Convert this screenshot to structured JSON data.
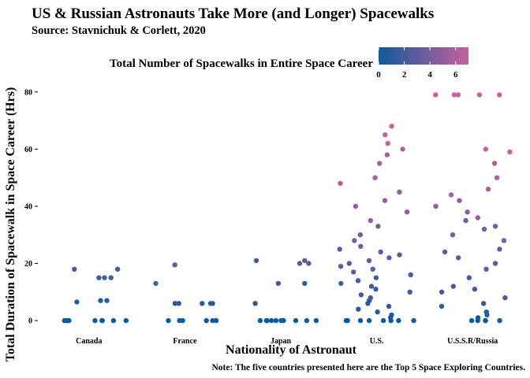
{
  "chart_data": {
    "type": "scatter",
    "title": "US & Russian Astronauts Take More (and Longer) Spacewalks",
    "subtitle": "Source: Stavnichuk & Corlett, 2020",
    "caption": "Note: The five countries presented here are the Top 5 Space Exploring Countries.",
    "xlabel": "Nationality of Astronaut",
    "ylabel": "Total Duration of Spacewalk in Space Career (Hrs)",
    "categories": [
      "Canada",
      "France",
      "Japan",
      "U.S.",
      "U.S.S.R/Russia"
    ],
    "ylim": [
      -3,
      86
    ],
    "y_ticks": [
      0,
      20,
      40,
      60,
      80
    ],
    "grid": false,
    "color_legend": {
      "title": "Total Number of Spacewalks in Entire Space Career",
      "placement": "top",
      "range": [
        0,
        7
      ],
      "ticks": [
        0,
        2,
        4,
        6
      ],
      "low_color": "#0e5a9c",
      "high_color": "#c7609e"
    },
    "points": {
      "Canada": [
        [
          7,
          1
        ],
        [
          18,
          2
        ],
        [
          15,
          2
        ],
        [
          0,
          0
        ],
        [
          0,
          0
        ],
        [
          0,
          0
        ],
        [
          0,
          0
        ],
        [
          18,
          2
        ],
        [
          15,
          2
        ],
        [
          0,
          0
        ],
        [
          7,
          1
        ],
        [
          6.5,
          1
        ],
        [
          15,
          2
        ],
        [
          0,
          0
        ],
        [
          0,
          0
        ],
        [
          0,
          0
        ],
        [
          0,
          0
        ]
      ],
      "France": [
        [
          0,
          0
        ],
        [
          0,
          0
        ],
        [
          6,
          1
        ],
        [
          13,
          2
        ],
        [
          0,
          0
        ],
        [
          6,
          1
        ],
        [
          19.5,
          3
        ],
        [
          0,
          0
        ],
        [
          6,
          1
        ],
        [
          0,
          0
        ],
        [
          6,
          1
        ],
        [
          6,
          1
        ],
        [
          0,
          0
        ]
      ],
      "Japan": [
        [
          13,
          1
        ],
        [
          21,
          2
        ],
        [
          6,
          1
        ],
        [
          0,
          0
        ],
        [
          0,
          0
        ],
        [
          0,
          0
        ],
        [
          0,
          0
        ],
        [
          13,
          2
        ],
        [
          20,
          3
        ],
        [
          0,
          0
        ],
        [
          0,
          0
        ],
        [
          20,
          3
        ],
        [
          21,
          3
        ],
        [
          0,
          0
        ],
        [
          0,
          0
        ],
        [
          0,
          0
        ],
        [
          0,
          0
        ]
      ],
      "U.S.": [
        [
          0,
          0
        ],
        [
          0,
          0
        ],
        [
          0,
          0
        ],
        [
          0,
          0
        ],
        [
          0,
          0
        ],
        [
          2,
          1
        ],
        [
          4,
          1
        ],
        [
          6,
          1
        ],
        [
          7,
          1
        ],
        [
          8,
          2
        ],
        [
          10,
          2
        ],
        [
          12,
          2
        ],
        [
          13,
          2
        ],
        [
          14,
          2
        ],
        [
          20,
          3
        ],
        [
          22,
          3
        ],
        [
          25,
          3
        ],
        [
          26,
          4
        ],
        [
          30,
          4
        ],
        [
          35,
          5
        ],
        [
          40,
          5
        ],
        [
          45,
          5
        ],
        [
          50,
          6
        ],
        [
          55,
          6
        ],
        [
          60,
          6
        ],
        [
          65,
          7
        ],
        [
          68,
          7
        ],
        [
          19,
          3
        ],
        [
          24,
          3
        ],
        [
          18,
          3
        ],
        [
          3,
          1
        ],
        [
          5,
          1
        ],
        [
          9,
          2
        ],
        [
          11,
          2
        ],
        [
          16,
          2
        ],
        [
          28,
          4
        ],
        [
          33,
          4
        ],
        [
          38,
          5
        ],
        [
          42,
          5
        ],
        [
          48,
          6
        ],
        [
          58,
          6
        ],
        [
          62,
          7
        ],
        [
          21,
          3
        ],
        [
          23,
          3
        ],
        [
          1,
          0
        ],
        [
          0,
          0
        ],
        [
          0,
          0
        ],
        [
          0,
          0
        ],
        [
          15,
          2
        ],
        [
          17,
          3
        ]
      ],
      "U.S.S.R/Russia": [
        [
          0,
          0
        ],
        [
          0,
          0
        ],
        [
          0,
          0
        ],
        [
          1,
          0
        ],
        [
          2,
          1
        ],
        [
          5,
          1
        ],
        [
          8,
          2
        ],
        [
          10,
          2
        ],
        [
          12,
          2
        ],
        [
          15,
          2
        ],
        [
          20,
          3
        ],
        [
          22,
          3
        ],
        [
          25,
          3
        ],
        [
          30,
          4
        ],
        [
          33,
          4
        ],
        [
          35,
          4
        ],
        [
          38,
          5
        ],
        [
          40,
          5
        ],
        [
          42,
          5
        ],
        [
          46,
          6
        ],
        [
          50,
          6
        ],
        [
          55,
          6
        ],
        [
          59,
          7
        ],
        [
          79,
          7
        ],
        [
          79,
          7
        ],
        [
          79,
          7
        ],
        [
          79,
          7
        ],
        [
          79,
          7
        ],
        [
          11,
          2
        ],
        [
          6,
          1
        ],
        [
          3,
          1
        ],
        [
          0,
          0
        ],
        [
          0,
          0
        ],
        [
          32,
          4
        ],
        [
          28,
          4
        ],
        [
          18,
          3
        ],
        [
          24,
          3
        ],
        [
          36,
          5
        ],
        [
          44,
          6
        ],
        [
          60,
          7
        ]
      ]
    }
  }
}
